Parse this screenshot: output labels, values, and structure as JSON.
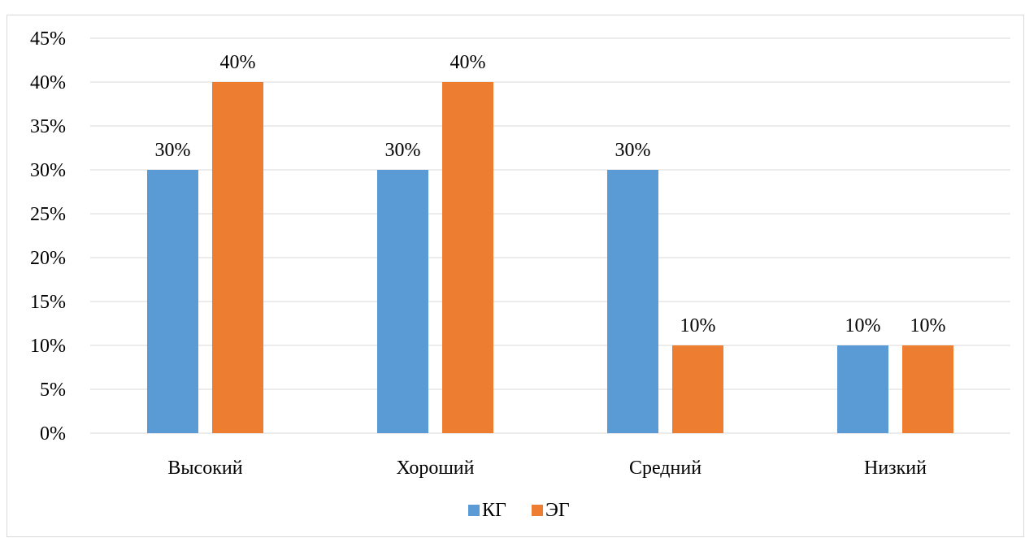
{
  "chart_data": {
    "type": "bar",
    "categories": [
      "Высокий",
      "Хороший",
      "Средний",
      "Низкий"
    ],
    "series": [
      {
        "name": "КГ",
        "values": [
          30,
          30,
          30,
          10
        ],
        "color": "#5b9bd5"
      },
      {
        "name": "ЭГ",
        "values": [
          40,
          40,
          10,
          10
        ],
        "color": "#ed7d31"
      }
    ],
    "data_labels": [
      [
        "30%",
        "30%",
        "30%",
        "10%"
      ],
      [
        "40%",
        "40%",
        "10%",
        "10%"
      ]
    ],
    "y_ticks": [
      "0%",
      "5%",
      "10%",
      "15%",
      "20%",
      "25%",
      "30%",
      "35%",
      "40%",
      "45%"
    ],
    "ylim": [
      0,
      45
    ],
    "y_step": 5,
    "title": "",
    "xlabel": "",
    "ylabel": "",
    "grid": true,
    "grid_color": "#d9d9d9",
    "legend_position": "bottom"
  }
}
